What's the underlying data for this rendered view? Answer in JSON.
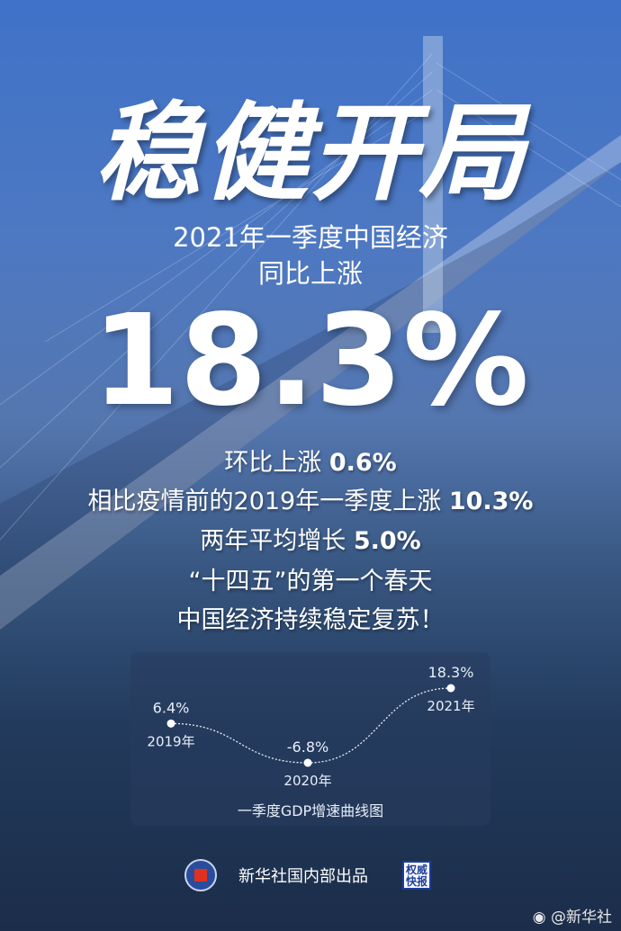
{
  "poster": {
    "title": "稳健开局",
    "subtitle_line1": "2021年一季度中国经济",
    "subtitle_line2": "同比上涨",
    "headline_value": "18.3%",
    "lines": [
      {
        "text": "环比上涨 ",
        "value": "0.6%"
      },
      {
        "text": "相比疫情前的2019年一季度上涨 ",
        "value": "10.3%"
      },
      {
        "text": "两年平均增长 ",
        "value": "5.0%"
      },
      {
        "text": "“十四五”的第一个春天",
        "value": ""
      },
      {
        "text": "中国经济持续稳定复苏！",
        "value": ""
      }
    ]
  },
  "chart_data": {
    "type": "line",
    "title": "一季度GDP增速曲线图",
    "categories": [
      "2019年",
      "2020年",
      "2021年"
    ],
    "values": [
      6.4,
      -6.8,
      18.3
    ],
    "value_labels": [
      "6.4%",
      "-6.8%",
      "18.3%"
    ],
    "line_style": "dotted",
    "grid": false
  },
  "footer": {
    "producer": "新华社国内部出品",
    "stamp": "权威快报",
    "watermark": "@新华社"
  },
  "colors": {
    "accent_blue": "#3f72c8",
    "dark_navy": "#1b2d4a",
    "logo_red": "#e03020"
  }
}
